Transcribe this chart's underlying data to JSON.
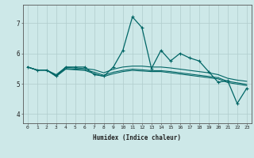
{
  "xlabel": "Humidex (Indice chaleur)",
  "ylabel": "",
  "xlim": [
    -0.5,
    23.5
  ],
  "ylim": [
    3.7,
    7.6
  ],
  "yticks": [
    4,
    5,
    6,
    7
  ],
  "xticks": [
    0,
    1,
    2,
    3,
    4,
    5,
    6,
    7,
    8,
    9,
    10,
    11,
    12,
    13,
    14,
    15,
    16,
    17,
    18,
    19,
    20,
    21,
    22,
    23
  ],
  "background_color": "#cde8e8",
  "grid_color": "#b0cccc",
  "line_color": "#006666",
  "lines": [
    {
      "x": [
        0,
        1,
        2,
        3,
        4,
        5,
        6,
        7,
        8,
        9,
        10,
        11,
        12,
        13,
        14,
        15,
        16,
        17,
        18,
        19,
        20,
        21,
        22,
        23
      ],
      "y": [
        5.55,
        5.45,
        5.45,
        5.25,
        5.55,
        5.55,
        5.55,
        5.3,
        5.25,
        5.55,
        6.1,
        7.2,
        6.85,
        5.5,
        6.1,
        5.75,
        6.0,
        5.85,
        5.75,
        5.4,
        5.05,
        5.1,
        4.35,
        4.85
      ],
      "with_markers": true
    },
    {
      "x": [
        0,
        1,
        2,
        3,
        4,
        5,
        6,
        7,
        8,
        9,
        10,
        11,
        12,
        13,
        14,
        15,
        16,
        17,
        18,
        19,
        20,
        21,
        22,
        23
      ],
      "y": [
        5.55,
        5.45,
        5.45,
        5.3,
        5.54,
        5.52,
        5.5,
        5.46,
        5.36,
        5.48,
        5.55,
        5.58,
        5.58,
        5.55,
        5.55,
        5.52,
        5.48,
        5.44,
        5.4,
        5.36,
        5.3,
        5.18,
        5.12,
        5.08
      ],
      "with_markers": false
    },
    {
      "x": [
        0,
        1,
        2,
        3,
        4,
        5,
        6,
        7,
        8,
        9,
        10,
        11,
        12,
        13,
        14,
        15,
        16,
        17,
        18,
        19,
        20,
        21,
        22,
        23
      ],
      "y": [
        5.55,
        5.45,
        5.45,
        5.27,
        5.5,
        5.48,
        5.46,
        5.38,
        5.28,
        5.38,
        5.44,
        5.48,
        5.46,
        5.43,
        5.43,
        5.4,
        5.36,
        5.32,
        5.28,
        5.24,
        5.2,
        5.08,
        5.03,
        4.98
      ],
      "with_markers": false
    },
    {
      "x": [
        0,
        1,
        2,
        3,
        4,
        5,
        6,
        7,
        8,
        9,
        10,
        11,
        12,
        13,
        14,
        15,
        16,
        17,
        18,
        19,
        20,
        21,
        22,
        23
      ],
      "y": [
        5.55,
        5.45,
        5.45,
        5.24,
        5.48,
        5.46,
        5.44,
        5.33,
        5.24,
        5.33,
        5.4,
        5.44,
        5.42,
        5.4,
        5.4,
        5.36,
        5.32,
        5.28,
        5.24,
        5.2,
        5.16,
        5.04,
        4.99,
        4.94
      ],
      "with_markers": false
    }
  ]
}
